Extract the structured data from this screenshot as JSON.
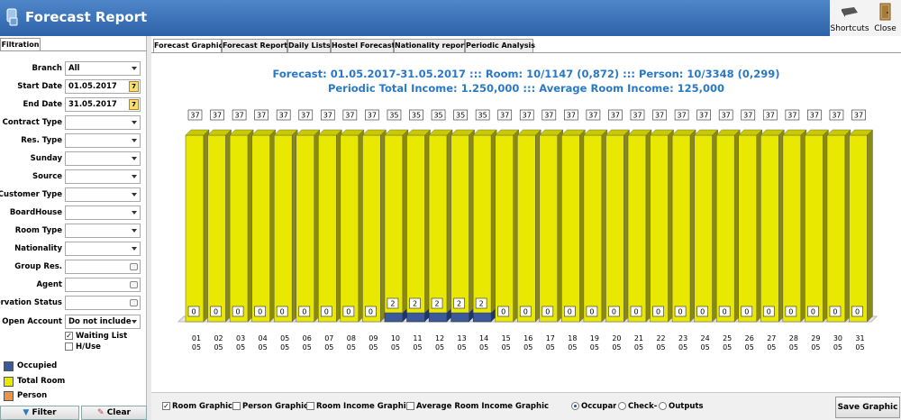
{
  "window": {
    "title": "Forecast Report"
  },
  "toolbar": {
    "shortcuts_label": "Shortcuts",
    "close_label": "Close"
  },
  "filtration": {
    "tab_label": "Filtration",
    "fields": [
      {
        "label": "Branch",
        "value": "All",
        "kind": "select"
      },
      {
        "label": "Start Date",
        "value": "01.05.2017",
        "kind": "date"
      },
      {
        "label": "End Date",
        "value": "31.05.2017",
        "kind": "date"
      },
      {
        "label": "Contract Type",
        "value": "",
        "kind": "select"
      },
      {
        "label": "Res. Type",
        "value": "",
        "kind": "select"
      },
      {
        "label": "Sunday",
        "value": "",
        "kind": "select"
      },
      {
        "label": "Source",
        "value": "",
        "kind": "select"
      },
      {
        "label": "Customer Type",
        "value": "",
        "kind": "select"
      },
      {
        "label": "BoardHouse",
        "value": "",
        "kind": "select"
      },
      {
        "label": "Room Type",
        "value": "",
        "kind": "select"
      },
      {
        "label": "Nationality",
        "value": "",
        "kind": "select"
      },
      {
        "label": "Group Res.",
        "value": "",
        "kind": "lookup"
      },
      {
        "label": "Agent",
        "value": "",
        "kind": "lookup"
      },
      {
        "label": "eservation Status",
        "value": "",
        "kind": "lookup"
      },
      {
        "label": "Open Account",
        "value": "Do not include",
        "kind": "select"
      }
    ],
    "waiting_list": {
      "label": "Waiting List",
      "checked": true
    },
    "h_use": {
      "label": "H/Use",
      "checked": false
    },
    "legend": [
      {
        "label": "Occupied",
        "color": "#3a5a9a"
      },
      {
        "label": "Total Room",
        "color": "#e8e800"
      },
      {
        "label": "Person",
        "color": "#e8944a"
      }
    ],
    "filter_button": "Filter",
    "clear_button": "Clear"
  },
  "tabs": [
    {
      "label": "Forecast Graphic",
      "active": true
    },
    {
      "label": "Forecast Report",
      "active": false
    },
    {
      "label": "Daily Lists",
      "active": false
    },
    {
      "label": "Hostel Forecast",
      "active": false
    },
    {
      "label": "Nationality report",
      "active": false
    },
    {
      "label": "Periodic Analysis",
      "active": false
    }
  ],
  "summary": {
    "line1": "Forecast: 01.05.2017-31.05.2017  :::  Room: 10/1147 (0,872)  :::  Person: 10/3348 (0,299)",
    "line2": "Periodic Total Income: 1.250,000  :::  Average Room Income: 125,000"
  },
  "chart_data": {
    "type": "bar",
    "categories": [
      "01",
      "02",
      "03",
      "04",
      "05",
      "06",
      "07",
      "08",
      "09",
      "10",
      "11",
      "12",
      "13",
      "14",
      "15",
      "16",
      "17",
      "18",
      "19",
      "20",
      "21",
      "22",
      "23",
      "24",
      "25",
      "26",
      "27",
      "28",
      "29",
      "30",
      "31"
    ],
    "month_labels": [
      "05",
      "05",
      "05",
      "05",
      "05",
      "05",
      "05",
      "05",
      "05",
      "05",
      "05",
      "05",
      "05",
      "05",
      "05",
      "05",
      "05",
      "05",
      "05",
      "05",
      "05",
      "05",
      "05",
      "05",
      "05",
      "05",
      "05",
      "05",
      "05",
      "05",
      "05"
    ],
    "series": [
      {
        "name": "Total Room",
        "color": "#e8e800",
        "values": [
          37,
          37,
          37,
          37,
          37,
          37,
          37,
          37,
          37,
          35,
          35,
          35,
          35,
          35,
          37,
          37,
          37,
          37,
          37,
          37,
          37,
          37,
          37,
          37,
          37,
          37,
          37,
          37,
          37,
          37,
          37
        ]
      },
      {
        "name": "Occupied",
        "color": "#3a5a9a",
        "values": [
          0,
          0,
          0,
          0,
          0,
          0,
          0,
          0,
          0,
          2,
          2,
          2,
          2,
          2,
          0,
          0,
          0,
          0,
          0,
          0,
          0,
          0,
          0,
          0,
          0,
          0,
          0,
          0,
          0,
          0,
          0
        ]
      }
    ],
    "style": "3d-stacked"
  },
  "bottom": {
    "checks": [
      {
        "label": "Room Graphic",
        "checked": true
      },
      {
        "label": "Person Graphic",
        "checked": false
      },
      {
        "label": "Room Income Graphic",
        "checked": false
      },
      {
        "label": "Average Room Income Graphic",
        "checked": false
      }
    ],
    "radios": [
      {
        "label": "Occupar",
        "selected": true
      },
      {
        "label": "Check-i",
        "selected": false
      },
      {
        "label": "Outputs",
        "selected": false
      }
    ],
    "save_button": "Save Graphic"
  }
}
